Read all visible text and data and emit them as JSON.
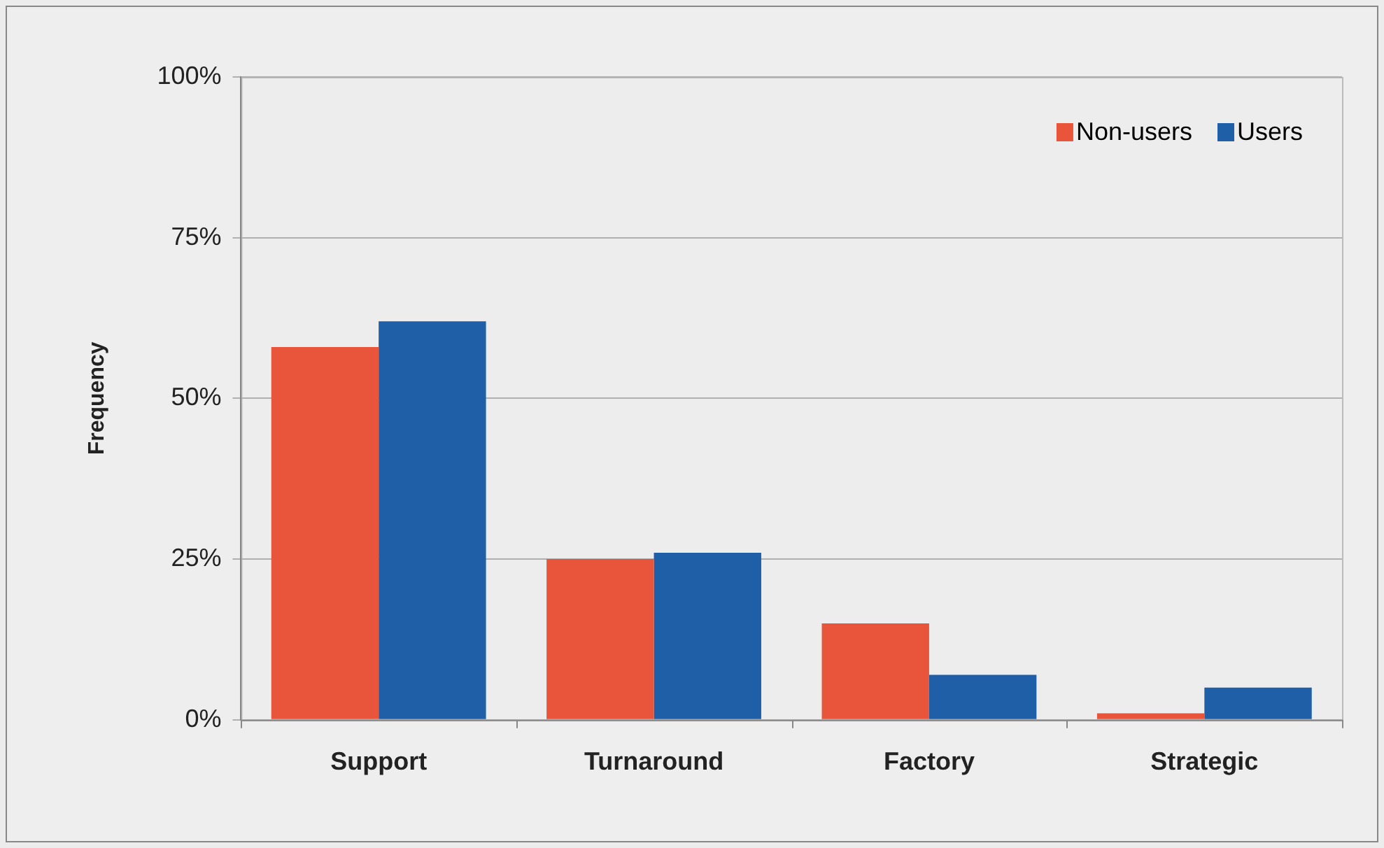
{
  "chart_data": {
    "type": "bar",
    "ylabel": "Frequency",
    "categories": [
      "Support",
      "Turnaround",
      "Factory",
      "Strategic"
    ],
    "series": [
      {
        "name": "Non-users",
        "color": "#e8553a",
        "values": [
          58,
          25,
          15,
          1
        ]
      },
      {
        "name": "Users",
        "color": "#1f5fa8",
        "values": [
          62,
          26,
          7,
          5
        ]
      }
    ],
    "ylim": [
      0,
      100
    ],
    "yticks": [
      {
        "value": 0,
        "label": "0%"
      },
      {
        "value": 25,
        "label": "25%"
      },
      {
        "value": 50,
        "label": "50%"
      },
      {
        "value": 75,
        "label": "75%"
      },
      {
        "value": 100,
        "label": "100%"
      }
    ],
    "grid": "y",
    "legend": "top right"
  }
}
